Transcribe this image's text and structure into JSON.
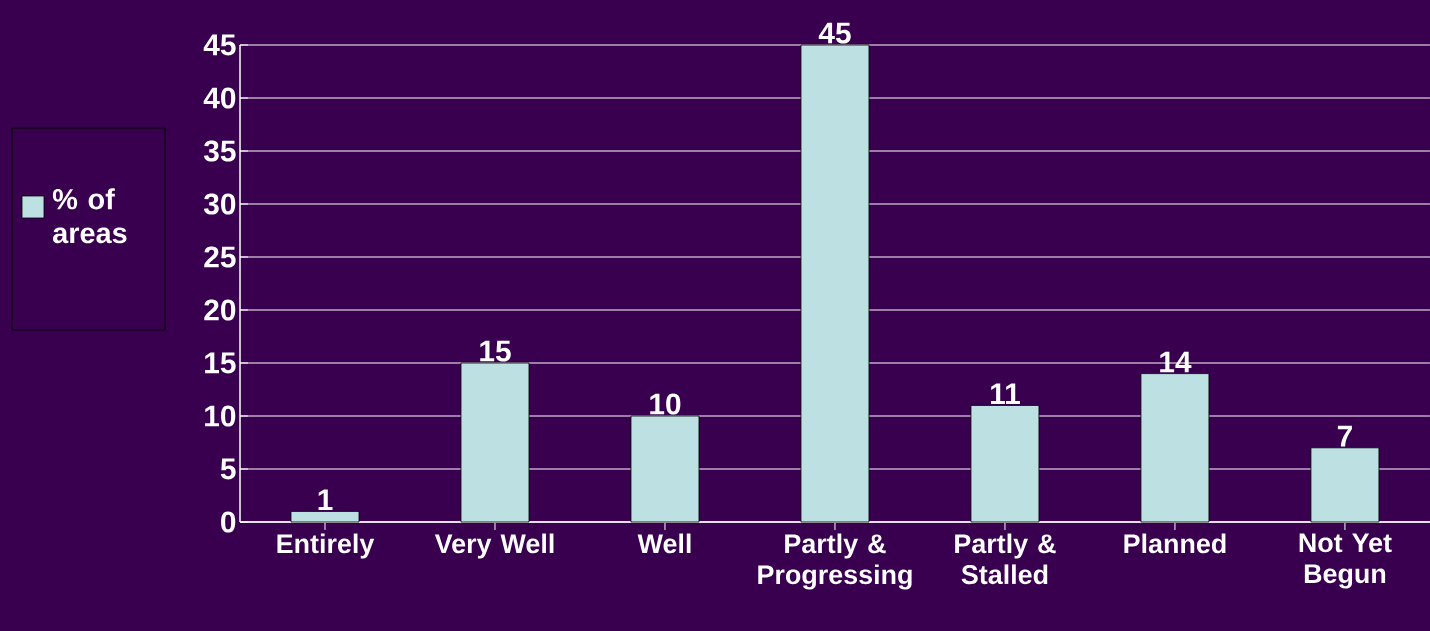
{
  "chart_data": {
    "type": "bar",
    "categories": [
      "Entirely",
      "Very Well",
      "Well",
      "Partly & Progressing",
      "Partly & Stalled",
      "Planned",
      "Not Yet Begun"
    ],
    "series": [
      {
        "name": "% of areas",
        "color": "#bde0e3",
        "values": [
          1,
          15,
          10,
          45,
          11,
          14,
          7
        ]
      }
    ],
    "ylim": [
      0,
      45
    ],
    "yticks": [
      0,
      5,
      10,
      15,
      20,
      25,
      30,
      35,
      40,
      45
    ],
    "grid": "y",
    "legend": "left",
    "data_labels": true
  }
}
